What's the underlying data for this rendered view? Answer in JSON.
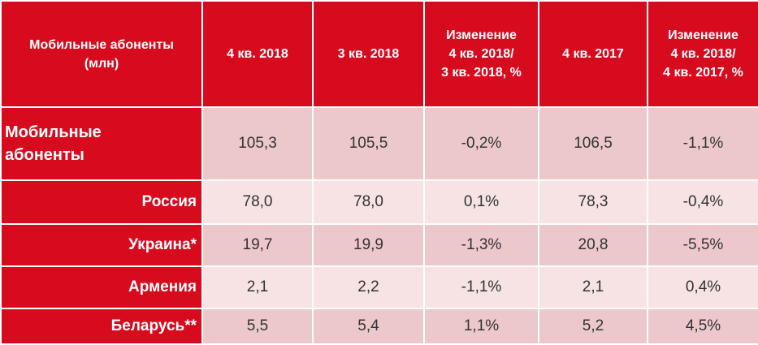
{
  "header": {
    "corner": [
      "Мобильные абоненты",
      "(млн)"
    ],
    "columns": [
      [
        "4 кв. 2018"
      ],
      [
        "3 кв. 2018"
      ],
      [
        "Изменение",
        "4 кв. 2018/",
        "3 кв. 2018, %"
      ],
      [
        "4 кв. 2017"
      ],
      [
        "Изменение",
        "4 кв. 2018/",
        "4 кв. 2017, %"
      ]
    ]
  },
  "rows": [
    {
      "label_lines": [
        "Мобильные",
        "абоненты"
      ],
      "values": [
        "105,3",
        "105,5",
        "-0,2%",
        "106,5",
        "-1,1%"
      ]
    },
    {
      "label": "Россия",
      "values": [
        "78,0",
        "78,0",
        "0,1%",
        "78,3",
        "-0,4%"
      ]
    },
    {
      "label": "Украина*",
      "values": [
        "19,7",
        "19,9",
        "-1,3%",
        "20,8",
        "-5,5%"
      ]
    },
    {
      "label": "Армения",
      "values": [
        "2,1",
        "2,2",
        "-1,1%",
        "2,1",
        "0,4%"
      ]
    },
    {
      "label": "Беларусь**",
      "values": [
        "5,5",
        "5,4",
        "1,1%",
        "5,2",
        "4,5%"
      ]
    }
  ],
  "colors": {
    "header_red": "#d70a1e",
    "row_dark": "#ecc8ca",
    "row_light": "#f7e3e4"
  }
}
